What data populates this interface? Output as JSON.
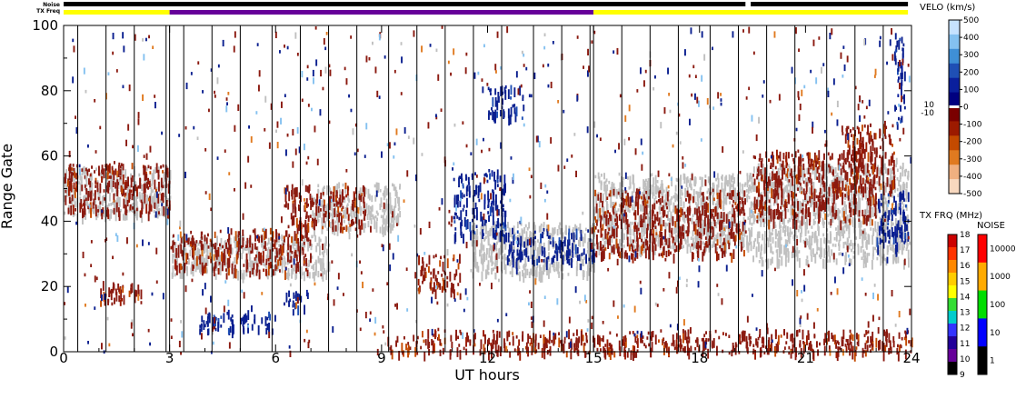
{
  "chart_data": {
    "type": "heatmap",
    "xlabel": "UT hours",
    "ylabel": "Range Gate",
    "xlim": [
      0,
      24
    ],
    "ylim": [
      0,
      100
    ],
    "x_ticks": [
      "0",
      "3",
      "6",
      "9",
      "12",
      "15",
      "18",
      "21",
      "24"
    ],
    "y_ticks": [
      "0",
      "20",
      "40",
      "60",
      "80",
      "100"
    ],
    "status_strips": {
      "noise_label": "Noise",
      "txfreq_label": "TX Freq",
      "noise_segments": [
        {
          "start": 0,
          "end": 19.3,
          "color": "#000000"
        },
        {
          "start": 19.45,
          "end": 23.9,
          "color": "#000000"
        }
      ],
      "txfreq_segments": [
        {
          "start": 0,
          "end": 3,
          "color": "#ffff00"
        },
        {
          "start": 3,
          "end": 15,
          "color": "#660099"
        },
        {
          "start": 15,
          "end": 23.9,
          "color": "#ffff00"
        }
      ]
    },
    "velocity_scale": {
      "title": "VELO (km/s)",
      "labels": [
        "500",
        "400",
        "300",
        "200",
        "100",
        "0",
        "-100",
        "-200",
        "-300",
        "-400",
        "-500"
      ],
      "side_labels": [
        "10",
        "-10"
      ],
      "colors": [
        "#c6e2ff",
        "#84c1f0",
        "#3f8fd6",
        "#1f4fb5",
        "#0a1f9c",
        "#000080",
        "#7a0000",
        "#9c1a00",
        "#c44a00",
        "#e07a20",
        "#f0b080",
        "#f8d8bf"
      ]
    },
    "txfreq_scale": {
      "title": "TX FRQ (MHz)",
      "labels": [
        "18",
        "17",
        "16",
        "15",
        "14",
        "13",
        "12",
        "11",
        "10",
        "9"
      ],
      "colors": [
        "#cc0000",
        "#ff3300",
        "#ff8800",
        "#ffcc00",
        "#ffff00",
        "#33dd33",
        "#00cccc",
        "#3333ff",
        "#220099",
        "#660099",
        "#000000"
      ]
    },
    "noise_scale": {
      "title": "NOISE",
      "labels": [
        "10000",
        "1000",
        "100",
        "10",
        "1"
      ],
      "colors": [
        "#ff0000",
        "#ffaa00",
        "#00dd00",
        "#0000ff",
        "#000000"
      ]
    },
    "data_gap_lines_ut": [
      0.4,
      1.2,
      2.0,
      2.9,
      3.0,
      3.4,
      4.2,
      5.0,
      5.9,
      6.7,
      7.5,
      8.3,
      9.2,
      10.0,
      10.8,
      11.6,
      12.4,
      13.3,
      14.1,
      14.9,
      15.0,
      15.8,
      16.6,
      17.4,
      18.3,
      19.1,
      19.9,
      20.7,
      21.6,
      22.4,
      23.2
    ],
    "features": [
      {
        "name": "ground scatter",
        "color": "#c0c0c0",
        "t0": 0.0,
        "t1": 3.0,
        "g0": 42,
        "g1": 57
      },
      {
        "name": "ground scatter",
        "color": "#c0c0c0",
        "t0": 3.0,
        "t1": 7.5,
        "g0": 24,
        "g1": 36
      },
      {
        "name": "ground scatter",
        "color": "#c0c0c0",
        "t0": 7.0,
        "t1": 9.5,
        "g0": 38,
        "g1": 52
      },
      {
        "name": "ground scatter",
        "color": "#c0c0c0",
        "t0": 11.5,
        "t1": 15.0,
        "g0": 24,
        "g1": 40
      },
      {
        "name": "ground scatter",
        "color": "#c0c0c0",
        "t0": 15.0,
        "t1": 19.5,
        "g0": 32,
        "g1": 55
      },
      {
        "name": "ground scatter",
        "color": "#c0c0c0",
        "t0": 19.5,
        "t1": 23.9,
        "g0": 28,
        "g1": 58
      },
      {
        "name": "negative velocity",
        "color": "#8b1a10",
        "t0": 0.0,
        "t1": 3.0,
        "g0": 43,
        "g1": 58
      },
      {
        "name": "negative velocity",
        "color": "#8b1a10",
        "t0": 1.0,
        "t1": 2.2,
        "g0": 15,
        "g1": 22
      },
      {
        "name": "negative velocity",
        "color": "#8b1a10",
        "t0": 3.0,
        "t1": 7.0,
        "g0": 25,
        "g1": 38
      },
      {
        "name": "negative velocity",
        "color": "#8b1a10",
        "t0": 6.2,
        "t1": 8.5,
        "g0": 38,
        "g1": 52
      },
      {
        "name": "negative velocity",
        "color": "#8b1a10",
        "t0": 10.0,
        "t1": 11.2,
        "g0": 19,
        "g1": 30
      },
      {
        "name": "negative velocity",
        "color": "#8b1a10",
        "t0": 9.0,
        "t1": 24.0,
        "g0": 0,
        "g1": 7
      },
      {
        "name": "negative velocity",
        "color": "#8b1a10",
        "t0": 15.0,
        "t1": 19.3,
        "g0": 30,
        "g1": 50
      },
      {
        "name": "negative velocity",
        "color": "#8b1a10",
        "t0": 19.5,
        "t1": 23.0,
        "g0": 40,
        "g1": 62
      },
      {
        "name": "negative velocity",
        "color": "#8b1a10",
        "t0": 22.0,
        "t1": 23.5,
        "g0": 50,
        "g1": 70
      },
      {
        "name": "positive velocity",
        "color": "#0a1f8f",
        "t0": 3.8,
        "t1": 6.0,
        "g0": 7,
        "g1": 13
      },
      {
        "name": "positive velocity",
        "color": "#0a1f8f",
        "t0": 6.2,
        "t1": 6.9,
        "g0": 14,
        "g1": 19
      },
      {
        "name": "positive velocity",
        "color": "#0a1f8f",
        "t0": 11.0,
        "t1": 12.5,
        "g0": 36,
        "g1": 56
      },
      {
        "name": "positive velocity",
        "color": "#0a1f8f",
        "t0": 12.5,
        "t1": 15.0,
        "g0": 28,
        "g1": 38
      },
      {
        "name": "positive velocity",
        "color": "#0a1f8f",
        "t0": 12.0,
        "t1": 13.0,
        "g0": 72,
        "g1": 82
      },
      {
        "name": "positive velocity",
        "color": "#0a1f8f",
        "t0": 23.0,
        "t1": 23.9,
        "g0": 32,
        "g1": 50
      },
      {
        "name": "positive velocity",
        "color": "#0a1f8f",
        "t0": 23.5,
        "t1": 23.8,
        "g0": 70,
        "g1": 98
      }
    ]
  }
}
